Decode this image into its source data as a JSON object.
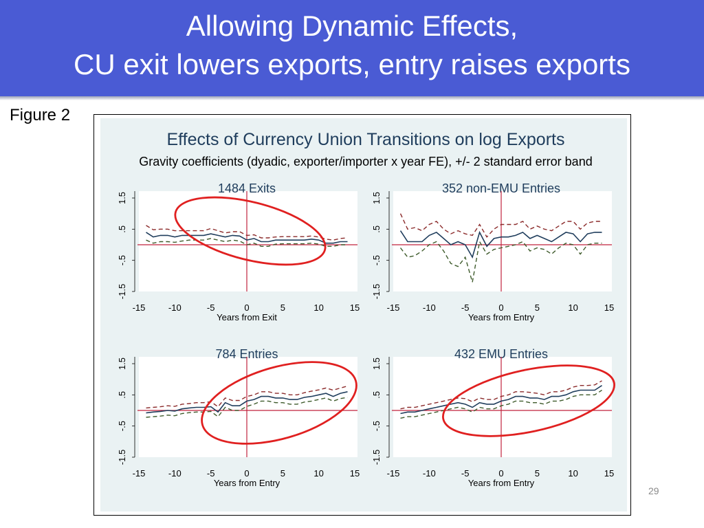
{
  "slide": {
    "title_line1": "Allowing Dynamic Effects,",
    "title_line2": "CU exit lowers exports, entry raises exports",
    "figure_label": "Figure 2",
    "page_number": "29"
  },
  "chart_data": {
    "type": "line",
    "title": "Effects of Currency Union Transitions on log Exports",
    "subtitle": "Gravity coefficients (dyadic, exporter/importer x year FE), +/- 2 standard error band",
    "colors": {
      "estimate": "#1f3d5c",
      "upper": "#8b2a2a",
      "lower": "#3d5a2a",
      "refline": "#c0223c",
      "ellipse": "#e02020",
      "plotbg": "#eaf2f3"
    },
    "panels": [
      {
        "title": "1484 Exits",
        "xlabel": "Years from Exit",
        "xlim": [
          -15,
          15
        ],
        "ylim": [
          -1.5,
          1.5
        ],
        "xticks": [
          "-15",
          "-10",
          "-5",
          "0",
          "5",
          "10",
          "15"
        ],
        "yticks": [
          "-1.5",
          "-.5",
          ".5",
          "1.5"
        ],
        "ellipse": true,
        "series": [
          {
            "role": "estimate",
            "x": [
              -14,
              -13,
              -12,
              -11,
              -10,
              -9,
              -8,
              -7,
              -6,
              -5,
              -4,
              -3,
              -2,
              -1,
              0,
              1,
              2,
              3,
              4,
              5,
              6,
              7,
              8,
              9,
              10,
              11,
              12,
              13,
              14
            ],
            "values": [
              0.4,
              0.25,
              0.3,
              0.3,
              0.25,
              0.3,
              0.3,
              0.3,
              0.3,
              0.35,
              0.3,
              0.25,
              0.3,
              0.28,
              0.15,
              0.2,
              0.1,
              0.1,
              0.15,
              0.15,
              0.15,
              0.15,
              0.15,
              0.18,
              0.15,
              0.05,
              0.05,
              0.1,
              0.1
            ]
          },
          {
            "role": "upper",
            "x": [
              -14,
              -13,
              -12,
              -11,
              -10,
              -9,
              -8,
              -7,
              -6,
              -5,
              -4,
              -3,
              -2,
              -1,
              0,
              1,
              2,
              3,
              4,
              5,
              6,
              7,
              8,
              9,
              10,
              11,
              12,
              13,
              14
            ],
            "values": [
              0.62,
              0.48,
              0.5,
              0.5,
              0.45,
              0.45,
              0.45,
              0.45,
              0.45,
              0.52,
              0.45,
              0.38,
              0.42,
              0.42,
              0.3,
              0.32,
              0.22,
              0.22,
              0.25,
              0.26,
              0.26,
              0.26,
              0.26,
              0.28,
              0.25,
              0.18,
              0.15,
              0.2,
              0.22
            ]
          },
          {
            "role": "lower",
            "x": [
              -14,
              -13,
              -12,
              -11,
              -10,
              -9,
              -8,
              -7,
              -6,
              -5,
              -4,
              -3,
              -2,
              -1,
              0,
              1,
              2,
              3,
              4,
              5,
              6,
              7,
              8,
              9,
              10,
              11,
              12,
              13,
              14
            ],
            "values": [
              0.15,
              0.05,
              0.1,
              0.1,
              0.08,
              0.12,
              0.15,
              0.15,
              0.15,
              0.2,
              0.15,
              0.1,
              0.15,
              0.12,
              0.0,
              0.05,
              -0.05,
              -0.05,
              0.02,
              0.03,
              0.03,
              0.03,
              0.03,
              0.05,
              0.02,
              -0.05,
              -0.05,
              0.0,
              0.0
            ]
          }
        ]
      },
      {
        "title": "352 non-EMU Entries",
        "xlabel": "Years from Entry",
        "xlim": [
          -15,
          15
        ],
        "ylim": [
          -1.5,
          1.5
        ],
        "xticks": [
          "-15",
          "-10",
          "-5",
          "0",
          "5",
          "10",
          "15"
        ],
        "yticks": [
          "-1.5",
          "-.5",
          ".5",
          "1.5"
        ],
        "ellipse": false,
        "series": [
          {
            "role": "estimate",
            "x": [
              -14,
              -13,
              -12,
              -11,
              -10,
              -9,
              -8,
              -7,
              -6,
              -5,
              -4,
              -3,
              -2,
              -1,
              0,
              1,
              2,
              3,
              4,
              5,
              6,
              7,
              8,
              9,
              10,
              11,
              12,
              13,
              14
            ],
            "values": [
              0.45,
              0.1,
              0.1,
              0.1,
              0.3,
              0.4,
              0.2,
              0.0,
              0.1,
              0.0,
              -0.4,
              0.4,
              -0.05,
              0.2,
              0.25,
              0.25,
              0.3,
              0.4,
              0.2,
              0.3,
              0.2,
              0.1,
              0.25,
              0.4,
              0.35,
              0.1,
              0.35,
              0.4,
              0.4
            ]
          },
          {
            "role": "upper",
            "x": [
              -14,
              -13,
              -12,
              -11,
              -10,
              -9,
              -8,
              -7,
              -6,
              -5,
              -4,
              -3,
              -2,
              -1,
              0,
              1,
              2,
              3,
              4,
              5,
              6,
              7,
              8,
              9,
              10,
              11,
              12,
              13,
              14
            ],
            "values": [
              1.0,
              0.5,
              0.55,
              0.45,
              0.65,
              0.75,
              0.5,
              0.35,
              0.45,
              0.35,
              0.3,
              0.65,
              0.25,
              0.5,
              0.65,
              0.65,
              0.65,
              0.75,
              0.5,
              0.6,
              0.5,
              0.45,
              0.6,
              0.75,
              0.75,
              0.5,
              0.7,
              0.75,
              0.75
            ]
          },
          {
            "role": "lower",
            "x": [
              -14,
              -13,
              -12,
              -11,
              -10,
              -9,
              -8,
              -7,
              -6,
              -5,
              -4,
              -3,
              -2,
              -1,
              0,
              1,
              2,
              3,
              4,
              5,
              6,
              7,
              8,
              9,
              10,
              11,
              12,
              13,
              14
            ],
            "values": [
              -0.1,
              -0.4,
              -0.35,
              -0.2,
              0.0,
              0.1,
              -0.2,
              -0.6,
              -0.7,
              -0.4,
              -1.2,
              0.1,
              -0.3,
              -0.15,
              -0.1,
              -0.05,
              0.0,
              0.1,
              -0.2,
              -0.1,
              -0.15,
              -0.3,
              -0.1,
              0.05,
              0.0,
              -0.3,
              0.0,
              0.05,
              0.05
            ]
          }
        ]
      },
      {
        "title": "784 Entries",
        "xlabel": "Years from Entry",
        "xlim": [
          -15,
          15
        ],
        "ylim": [
          -1.5,
          1.5
        ],
        "xticks": [
          "-15",
          "-10",
          "-5",
          "0",
          "5",
          "10",
          "15"
        ],
        "yticks": [
          "-1.5",
          "-.5",
          ".5",
          "1.5"
        ],
        "ellipse": true,
        "series": [
          {
            "role": "estimate",
            "x": [
              -14,
              -13,
              -12,
              -11,
              -10,
              -9,
              -8,
              -7,
              -6,
              -5,
              -4,
              -3,
              -2,
              -1,
              0,
              1,
              2,
              3,
              4,
              5,
              6,
              7,
              8,
              9,
              10,
              11,
              12,
              13,
              14
            ],
            "values": [
              -0.08,
              -0.05,
              -0.03,
              0.0,
              -0.02,
              0.05,
              0.08,
              0.1,
              0.1,
              0.12,
              -0.05,
              0.25,
              0.15,
              0.15,
              0.3,
              0.35,
              0.45,
              0.45,
              0.4,
              0.4,
              0.35,
              0.35,
              0.42,
              0.45,
              0.5,
              0.55,
              0.45,
              0.55,
              0.6
            ]
          },
          {
            "role": "upper",
            "x": [
              -14,
              -13,
              -12,
              -11,
              -10,
              -9,
              -8,
              -7,
              -6,
              -5,
              -4,
              -3,
              -2,
              -1,
              0,
              1,
              2,
              3,
              4,
              5,
              6,
              7,
              8,
              9,
              10,
              11,
              12,
              13,
              14
            ],
            "values": [
              0.08,
              0.1,
              0.12,
              0.15,
              0.13,
              0.2,
              0.22,
              0.25,
              0.25,
              0.28,
              0.12,
              0.4,
              0.32,
              0.32,
              0.45,
              0.5,
              0.6,
              0.6,
              0.55,
              0.55,
              0.5,
              0.5,
              0.57,
              0.62,
              0.66,
              0.72,
              0.65,
              0.72,
              0.78
            ]
          },
          {
            "role": "lower",
            "x": [
              -14,
              -13,
              -12,
              -11,
              -10,
              -9,
              -8,
              -7,
              -6,
              -5,
              -4,
              -3,
              -2,
              -1,
              0,
              1,
              2,
              3,
              4,
              5,
              6,
              7,
              8,
              9,
              10,
              11,
              12,
              13,
              14
            ],
            "values": [
              -0.22,
              -0.2,
              -0.18,
              -0.15,
              -0.17,
              -0.1,
              -0.07,
              -0.05,
              -0.05,
              -0.03,
              -0.2,
              0.1,
              0.0,
              0.0,
              0.13,
              0.2,
              0.3,
              0.3,
              0.25,
              0.25,
              0.2,
              0.2,
              0.27,
              0.3,
              0.35,
              0.4,
              0.3,
              0.38,
              0.42
            ]
          }
        ]
      },
      {
        "title": "432 EMU Entries",
        "xlabel": "Years from Entry",
        "xlim": [
          -15,
          15
        ],
        "ylim": [
          -1.5,
          1.5
        ],
        "xticks": [
          "-15",
          "-10",
          "-5",
          "0",
          "5",
          "10",
          "15"
        ],
        "yticks": [
          "-1.5",
          "-.5",
          ".5",
          "1.5"
        ],
        "ellipse": true,
        "series": [
          {
            "role": "estimate",
            "x": [
              -14,
              -13,
              -12,
              -11,
              -10,
              -9,
              -8,
              -7,
              -6,
              -5,
              -4,
              -3,
              -2,
              -1,
              0,
              1,
              2,
              3,
              4,
              5,
              6,
              7,
              8,
              9,
              10,
              11,
              12,
              13,
              14
            ],
            "values": [
              -0.1,
              -0.05,
              -0.05,
              0.0,
              0.05,
              0.1,
              0.15,
              0.2,
              0.25,
              0.2,
              0.1,
              0.25,
              0.2,
              0.2,
              0.3,
              0.35,
              0.45,
              0.45,
              0.4,
              0.4,
              0.35,
              0.45,
              0.45,
              0.5,
              0.6,
              0.65,
              0.65,
              0.65,
              0.8
            ]
          },
          {
            "role": "upper",
            "x": [
              -14,
              -13,
              -12,
              -11,
              -10,
              -9,
              -8,
              -7,
              -6,
              -5,
              -4,
              -3,
              -2,
              -1,
              0,
              1,
              2,
              3,
              4,
              5,
              6,
              7,
              8,
              9,
              10,
              11,
              12,
              13,
              14
            ],
            "values": [
              0.05,
              0.1,
              0.1,
              0.15,
              0.2,
              0.25,
              0.3,
              0.35,
              0.4,
              0.38,
              0.28,
              0.4,
              0.35,
              0.35,
              0.45,
              0.5,
              0.6,
              0.6,
              0.58,
              0.55,
              0.5,
              0.6,
              0.6,
              0.65,
              0.75,
              0.8,
              0.8,
              0.82,
              0.95
            ]
          },
          {
            "role": "lower",
            "x": [
              -14,
              -13,
              -12,
              -11,
              -10,
              -9,
              -8,
              -7,
              -6,
              -5,
              -4,
              -3,
              -2,
              -1,
              0,
              1,
              2,
              3,
              4,
              5,
              6,
              7,
              8,
              9,
              10,
              11,
              12,
              13,
              14
            ],
            "values": [
              -0.25,
              -0.2,
              -0.2,
              -0.15,
              -0.1,
              -0.05,
              0.0,
              0.05,
              0.1,
              0.05,
              -0.05,
              0.1,
              0.05,
              0.05,
              0.15,
              0.2,
              0.3,
              0.3,
              0.25,
              0.25,
              0.2,
              0.3,
              0.3,
              0.35,
              0.45,
              0.5,
              0.5,
              0.5,
              0.65
            ]
          }
        ]
      }
    ]
  }
}
